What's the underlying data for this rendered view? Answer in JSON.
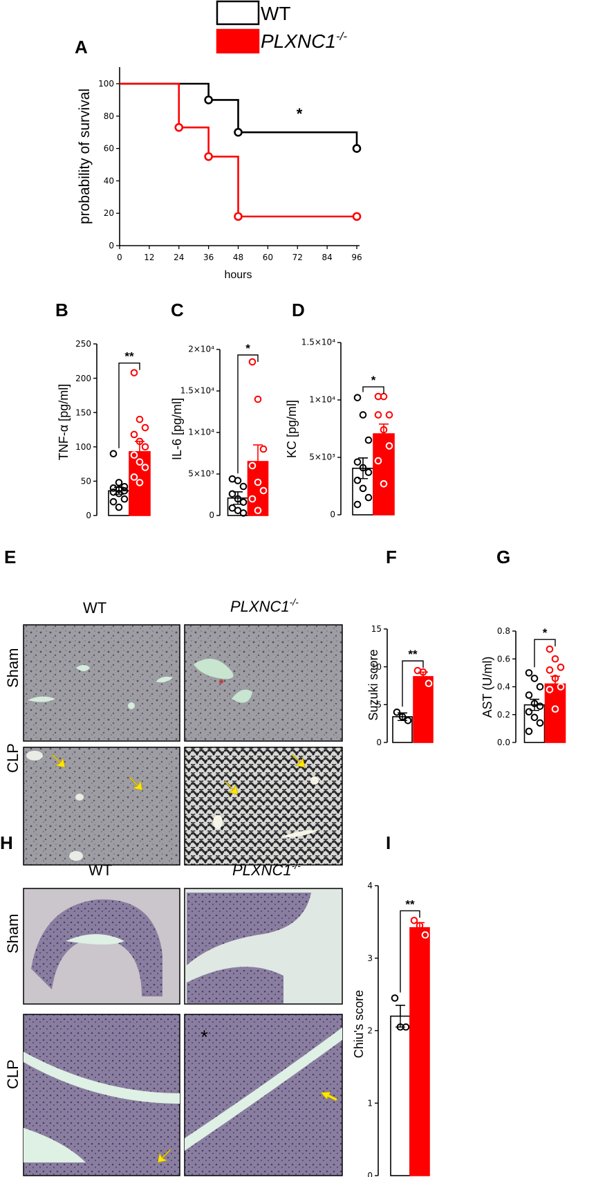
{
  "colors": {
    "wt": "#000000",
    "ko": "#ff0000",
    "arrow": "#ffe600",
    "tissue_bg": "#c8c7c8"
  },
  "legend": {
    "wt_label": "WT",
    "ko_label": "PLXNC1",
    "ko_sup": "-/-"
  },
  "panels": {
    "A": "A",
    "B": "B",
    "C": "C",
    "D": "D",
    "E": "E",
    "F": "F",
    "G": "G",
    "H": "H",
    "I": "I"
  },
  "histology": {
    "col_wt": "WT",
    "col_ko": "PLXNC1",
    "col_ko_sup": "-/-",
    "row_sham": "Sham",
    "row_clp": "CLP",
    "asterisk": "*"
  },
  "chart_data": [
    {
      "id": "A",
      "type": "line",
      "step": true,
      "xlabel": "hours",
      "ylabel": "probability of survival",
      "xticks": [
        0,
        12,
        24,
        36,
        48,
        60,
        72,
        84,
        96
      ],
      "yticks": [
        0,
        20,
        40,
        60,
        80,
        100
      ],
      "xlim": [
        0,
        96
      ],
      "ylim": [
        0,
        100
      ],
      "significance": "*",
      "series": [
        {
          "name": "WT",
          "color": "#000000",
          "steps": [
            [
              0,
              100
            ],
            [
              36,
              100
            ],
            [
              36,
              90
            ],
            [
              48,
              90
            ],
            [
              48,
              70
            ],
            [
              96,
              70
            ],
            [
              96,
              60
            ]
          ],
          "censor": [
            [
              36,
              90
            ],
            [
              48,
              70
            ],
            [
              96,
              60
            ]
          ]
        },
        {
          "name": "PLXNC1-/-",
          "color": "#ff0000",
          "steps": [
            [
              0,
              100
            ],
            [
              24,
              100
            ],
            [
              24,
              73
            ],
            [
              36,
              73
            ],
            [
              36,
              55
            ],
            [
              48,
              55
            ],
            [
              48,
              18
            ],
            [
              96,
              18
            ]
          ],
          "censor": [
            [
              24,
              73
            ],
            [
              36,
              55
            ],
            [
              48,
              18
            ],
            [
              96,
              18
            ]
          ]
        }
      ]
    },
    {
      "id": "B",
      "type": "bar",
      "ylabel": "TNF-α [pg/ml]",
      "yticks": [
        0,
        50,
        100,
        150,
        200,
        250
      ],
      "ytick_labels": [
        "0",
        "50",
        "100",
        "150",
        "200",
        "250"
      ],
      "ylim": [
        0,
        250
      ],
      "significance": "**",
      "groups": [
        {
          "name": "WT",
          "mean": 36,
          "sem": 5,
          "points": [
            90,
            48,
            42,
            40,
            38,
            36,
            34,
            32,
            24,
            20,
            12
          ]
        },
        {
          "name": "PLXNC1-/-",
          "mean": 93,
          "sem": 15,
          "points": [
            208,
            140,
            128,
            118,
            108,
            100,
            88,
            78,
            70,
            56,
            48
          ]
        }
      ]
    },
    {
      "id": "C",
      "type": "bar",
      "ylabel": "IL-6 [pg/ml]",
      "yticks": [
        0,
        5000,
        10000,
        15000,
        20000
      ],
      "ytick_labels": [
        "0",
        "5×10³",
        "1×10⁴",
        "1.5×10⁴",
        "2×10⁴"
      ],
      "ylim": [
        0,
        20000
      ],
      "significance": "*",
      "groups": [
        {
          "name": "WT",
          "mean": 2100,
          "sem": 750,
          "points": [
            4400,
            4200,
            3500,
            2600,
            2000,
            1600,
            900,
            600,
            300
          ]
        },
        {
          "name": "PLXNC1-/-",
          "mean": 6500,
          "sem": 2000,
          "points": [
            18500,
            14000,
            8000,
            6000,
            4000,
            3000,
            2000,
            600
          ]
        }
      ]
    },
    {
      "id": "D",
      "type": "bar",
      "ylabel": "KC [pg/ml]",
      "yticks": [
        0,
        5000,
        10000,
        15000
      ],
      "ytick_labels": [
        "0",
        "5×10³",
        "1×10⁴",
        "1.5×10⁴"
      ],
      "ylim": [
        0,
        15000
      ],
      "significance": "*",
      "groups": [
        {
          "name": "WT",
          "mean": 4050,
          "sem": 900,
          "points": [
            10200,
            8700,
            6500,
            4600,
            4100,
            3700,
            3000,
            2300,
            1500,
            900
          ]
        },
        {
          "name": "PLXNC1-/-",
          "mean": 7050,
          "sem": 850,
          "points": [
            10300,
            10300,
            8700,
            8700,
            7400,
            6000,
            4700,
            2700
          ]
        }
      ]
    },
    {
      "id": "F",
      "type": "bar",
      "ylabel": "Suzuki score",
      "yticks": [
        0,
        5,
        10,
        15
      ],
      "ytick_labels": [
        "0",
        "5",
        "10",
        "15"
      ],
      "ylim": [
        0,
        15
      ],
      "significance": "**",
      "groups": [
        {
          "name": "WT",
          "mean": 3.4,
          "sem": 0.5,
          "points": [
            4.0,
            3.4,
            2.9
          ]
        },
        {
          "name": "PLXNC1-/-",
          "mean": 8.7,
          "sem": 0.6,
          "points": [
            9.5,
            9.3,
            7.8
          ]
        }
      ]
    },
    {
      "id": "G",
      "type": "bar",
      "ylabel": "AST (U/ml)",
      "yticks": [
        0.0,
        0.2,
        0.4,
        0.6,
        0.8
      ],
      "ytick_labels": [
        "0.0",
        "0.2",
        "0.4",
        "0.6",
        "0.8"
      ],
      "ylim": [
        0,
        0.8
      ],
      "significance": "*",
      "groups": [
        {
          "name": "WT",
          "mean": 0.27,
          "sem": 0.04,
          "points": [
            0.5,
            0.46,
            0.4,
            0.34,
            0.28,
            0.26,
            0.22,
            0.18,
            0.14,
            0.08
          ]
        },
        {
          "name": "PLXNC1-/-",
          "mean": 0.42,
          "sem": 0.055,
          "points": [
            0.67,
            0.6,
            0.54,
            0.52,
            0.46,
            0.4,
            0.38,
            0.24
          ]
        }
      ]
    },
    {
      "id": "I",
      "type": "bar",
      "ylabel": "Chiu's score",
      "yticks": [
        0,
        1,
        2,
        3,
        4
      ],
      "ytick_labels": [
        "0",
        "1",
        "2",
        "3",
        "4"
      ],
      "ylim": [
        0,
        4
      ],
      "significance": "**",
      "groups": [
        {
          "name": "WT",
          "mean": 2.2,
          "sem": 0.15,
          "points": [
            2.45,
            2.05,
            2.05
          ]
        },
        {
          "name": "PLXNC1-/-",
          "mean": 3.42,
          "sem": 0.07,
          "points": [
            3.52,
            3.45,
            3.32
          ]
        }
      ]
    }
  ]
}
